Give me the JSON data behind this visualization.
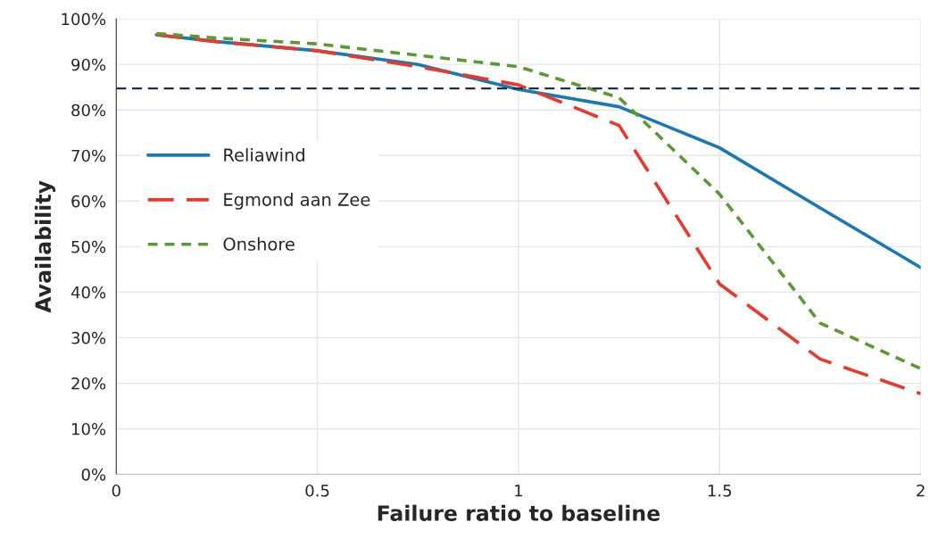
{
  "chart_data": {
    "type": "line",
    "xlabel": "Failure ratio to baseline",
    "ylabel": "Availability",
    "x": [
      0.1,
      0.25,
      0.5,
      0.75,
      1,
      1.25,
      1.5,
      1.75,
      2
    ],
    "series": [
      {
        "name": "Reliawind",
        "color": "#1a78b4",
        "line_style": "solid",
        "values": [
          96.5,
          95,
          93,
          90,
          84.5,
          80.7,
          71.7,
          58.5,
          45.4
        ]
      },
      {
        "name": "Egmond aan Zee",
        "color": "#e8392c",
        "line_style": "dashed",
        "values": [
          96.5,
          95,
          93,
          89.5,
          85.5,
          76.6,
          41.8,
          25.3,
          17.7
        ]
      },
      {
        "name": "Onshore",
        "color": "#5b9a32",
        "line_style": "dotted",
        "values": [
          96.8,
          95.8,
          94.5,
          92,
          89.5,
          82.7,
          61.5,
          33.2,
          23.2
        ]
      }
    ],
    "xlim": [
      0,
      2
    ],
    "xticks": [
      0,
      0.5,
      1,
      1.5,
      2
    ],
    "ylim": [
      0,
      100
    ],
    "yticks": [
      {
        "value": 0,
        "label": "0%"
      },
      {
        "value": 10,
        "label": "10%"
      },
      {
        "value": 20,
        "label": "20%"
      },
      {
        "value": 30,
        "label": "30%"
      },
      {
        "value": 40,
        "label": "40%"
      },
      {
        "value": 50,
        "label": "50%"
      },
      {
        "value": 60,
        "label": "60%"
      },
      {
        "value": 70,
        "label": "70%"
      },
      {
        "value": 80,
        "label": "80%"
      },
      {
        "value": 90,
        "label": "90%"
      },
      {
        "value": 100,
        "label": "100%"
      }
    ],
    "ref_lines": [
      {
        "axis": "y",
        "value": 84.7,
        "label": null,
        "color": "#1c2f4f",
        "line_style": "dashed"
      }
    ],
    "grid": true,
    "legend": "center left",
    "marker": "none"
  }
}
